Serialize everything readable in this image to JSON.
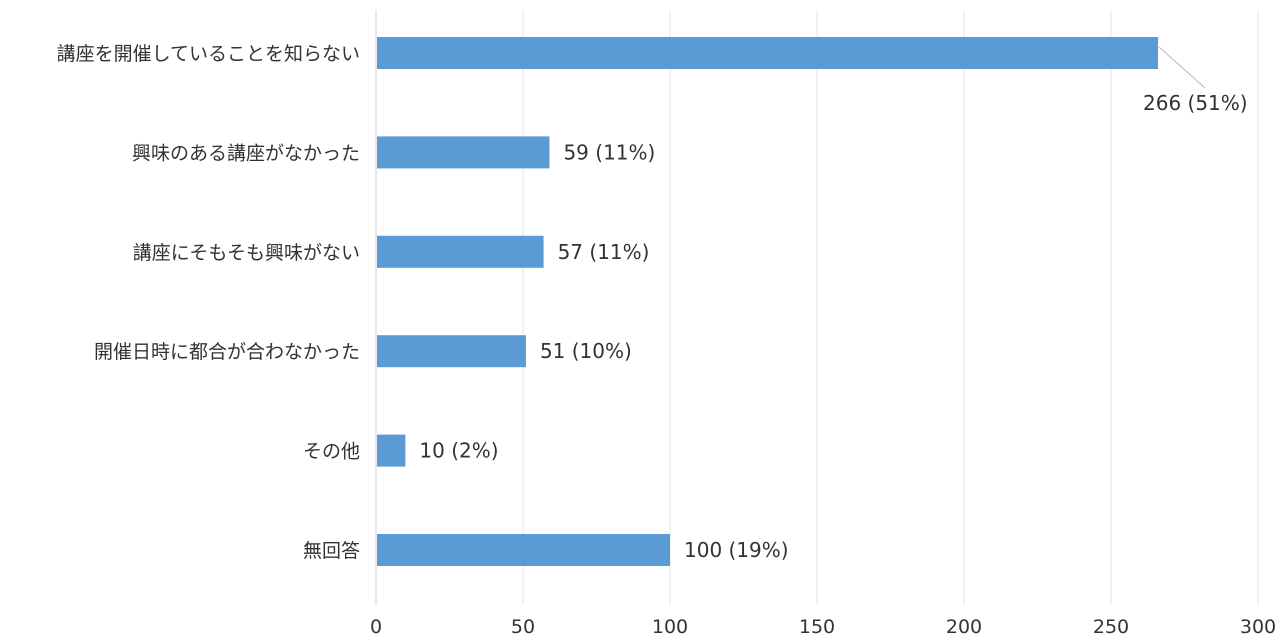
{
  "chart_data": {
    "type": "bar",
    "orientation": "horizontal",
    "categories": [
      "講座を開催していることを知らない",
      "興味のある講座がなかった",
      "講座にそもそも興味がない",
      "開催日時に都合が合わなかった",
      "その他",
      "無回答"
    ],
    "values": [
      266,
      59,
      57,
      51,
      10,
      100
    ],
    "data_labels": [
      "266 (51%)",
      "59 (11%)",
      "57 (11%)",
      "51 (10%)",
      "10 (2%)",
      "100 (19%)"
    ],
    "x_ticks": [
      "0",
      "50",
      "100",
      "150",
      "200",
      "250",
      "300"
    ],
    "xlim": [
      0,
      300
    ],
    "grid": true,
    "legend": "none",
    "bar_color": "#5b9bd5",
    "title": "",
    "xlabel": "",
    "ylabel": ""
  }
}
